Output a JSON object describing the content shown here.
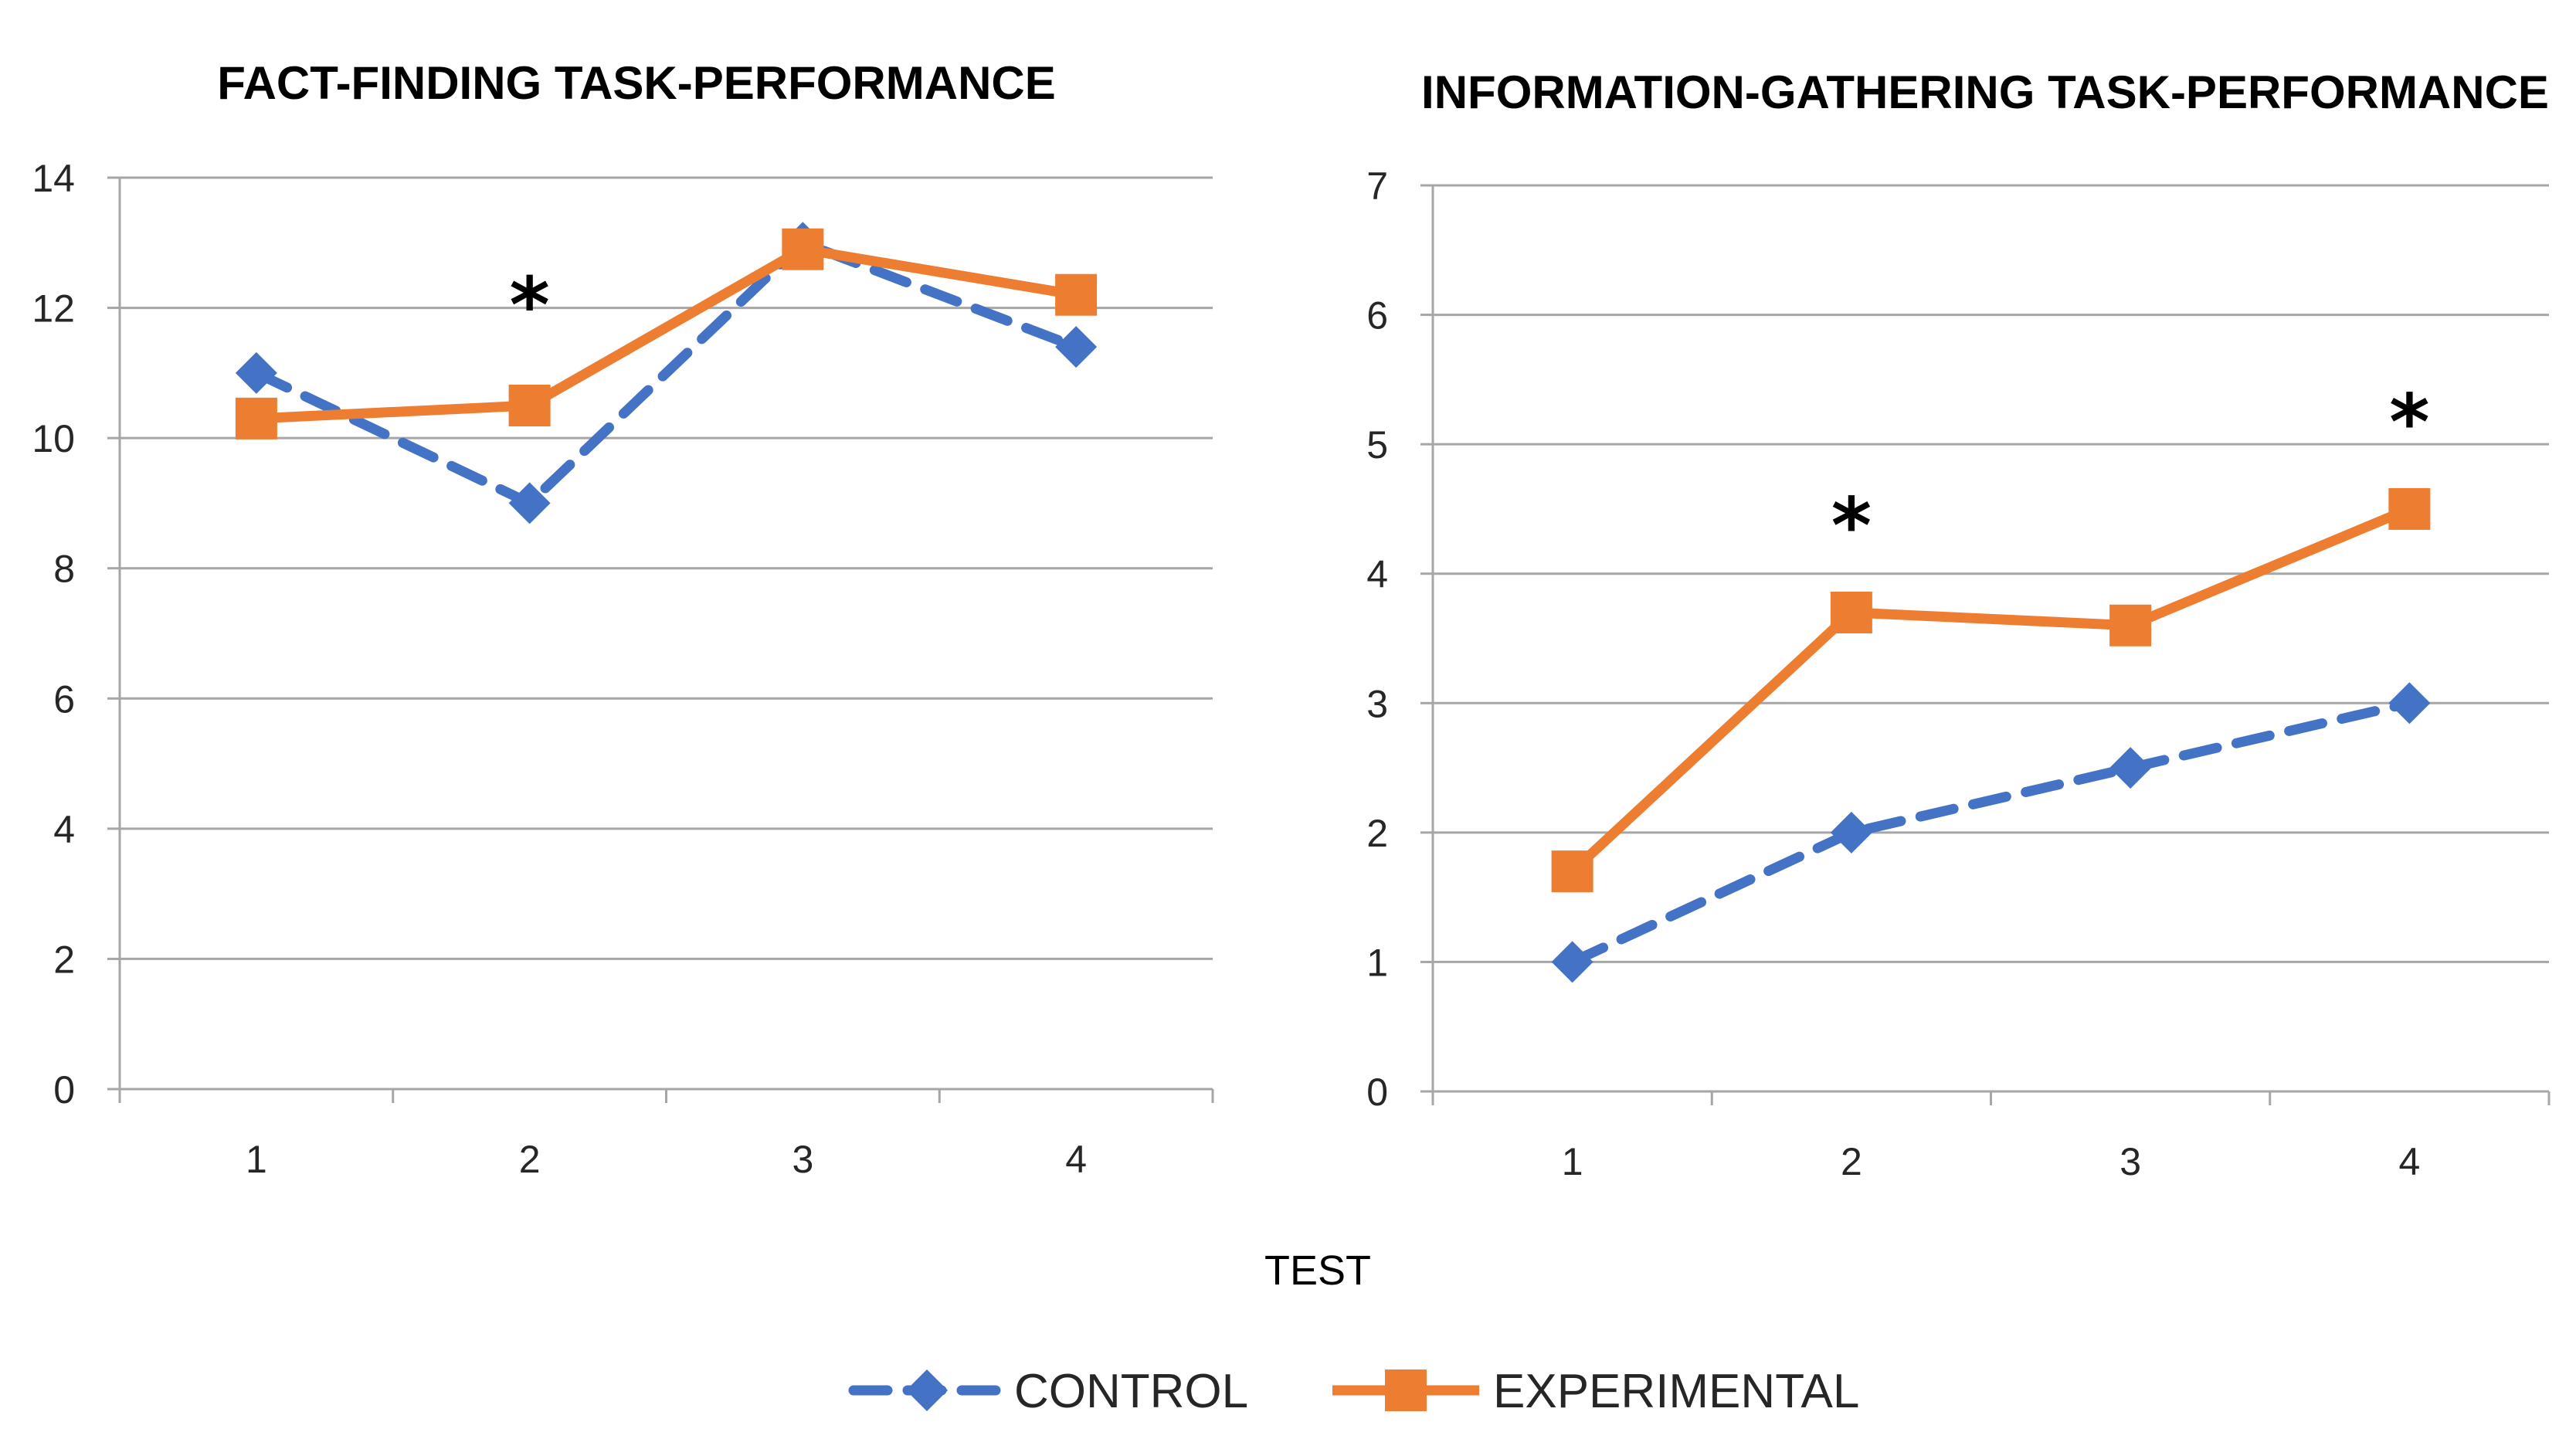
{
  "chart_data": [
    {
      "type": "line",
      "title": "FACT-FINDING TASK-PERFORMANCE",
      "xlabel": "",
      "ylabel": "",
      "categories": [
        "1",
        "2",
        "3",
        "4"
      ],
      "ylim": [
        0,
        14
      ],
      "yticks": [
        0,
        2,
        4,
        6,
        8,
        10,
        12,
        14
      ],
      "grid": true,
      "series": [
        {
          "name": "CONTROL",
          "color": "#4472C4",
          "marker": "diamond",
          "dash": "dashed",
          "values": [
            11.0,
            9.0,
            13.0,
            11.4
          ]
        },
        {
          "name": "EXPERIMENTAL",
          "color": "#ED7D31",
          "marker": "square",
          "dash": "solid",
          "values": [
            10.3,
            10.5,
            12.9,
            12.2
          ]
        }
      ],
      "annotations": [
        {
          "text": "*",
          "category": "2",
          "y": 12.1
        }
      ]
    },
    {
      "type": "line",
      "title": "INFORMATION-GATHERING TASK-PERFORMANCE",
      "xlabel": "",
      "ylabel": "",
      "categories": [
        "1",
        "2",
        "3",
        "4"
      ],
      "ylim": [
        0,
        7
      ],
      "yticks": [
        0,
        1,
        2,
        3,
        4,
        5,
        6,
        7
      ],
      "grid": true,
      "series": [
        {
          "name": "CONTROL",
          "color": "#4472C4",
          "marker": "diamond",
          "dash": "dashed",
          "values": [
            1.0,
            2.0,
            2.5,
            3.0
          ]
        },
        {
          "name": "EXPERIMENTAL",
          "color": "#ED7D31",
          "marker": "square",
          "dash": "solid",
          "values": [
            1.7,
            3.7,
            3.6,
            4.5
          ]
        }
      ],
      "annotations": [
        {
          "text": "*",
          "category": "2",
          "y": 4.4
        },
        {
          "text": "*",
          "category": "4",
          "y": 5.2
        }
      ]
    }
  ],
  "shared_xlabel": "TEST",
  "legend": {
    "position": "bottom",
    "items": [
      {
        "name": "CONTROL",
        "color": "#4472C4",
        "marker": "diamond",
        "dash": "dashed"
      },
      {
        "name": "EXPERIMENTAL",
        "color": "#ED7D31",
        "marker": "square",
        "dash": "solid"
      }
    ]
  }
}
